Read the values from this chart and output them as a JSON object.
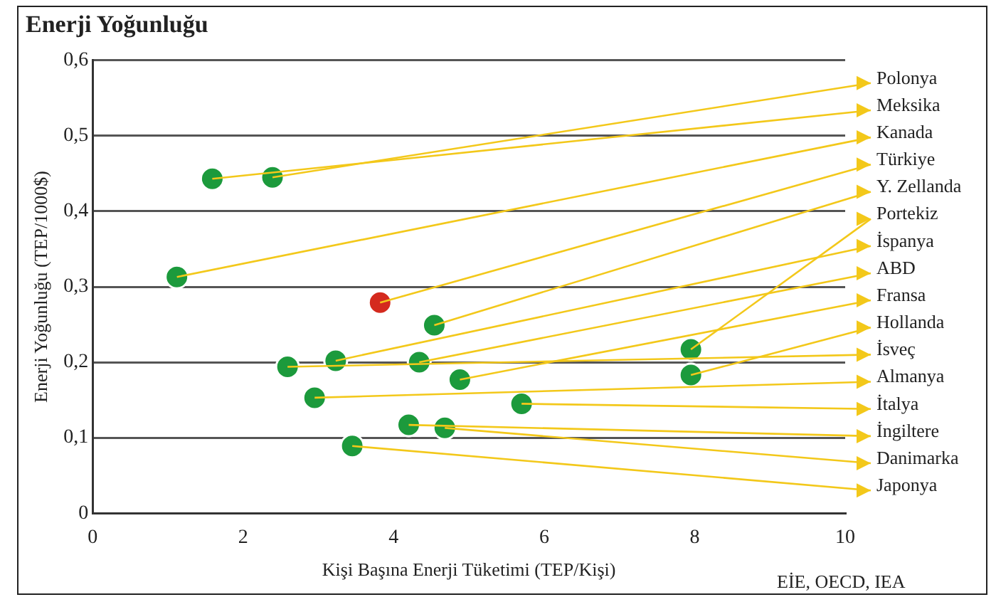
{
  "chart_data": {
    "type": "scatter",
    "title": "Enerji Yoğunluğu",
    "xlabel": "Kişi Başına Enerji Tüketimi (TEP/Kişi)",
    "ylabel": "Enerji Yoğunluğu (TEP/1000$)",
    "xlim": [
      0,
      10
    ],
    "xticks": [
      0,
      2,
      4,
      6,
      8,
      10
    ],
    "ylim": [
      0,
      0.6
    ],
    "yticks": [
      {
        "value": 0,
        "label": "0"
      },
      {
        "value": 0.1,
        "label": "0,1"
      },
      {
        "value": 0.2,
        "label": "0,2"
      },
      {
        "value": 0.3,
        "label": "0,3"
      },
      {
        "value": 0.4,
        "label": "0,4"
      },
      {
        "value": 0.5,
        "label": "0,5"
      },
      {
        "value": 0.6,
        "label": "0,6"
      }
    ],
    "grid": "y",
    "legend": false,
    "marker": "circle",
    "series": [
      {
        "x": [
          2.39,
          1.59,
          1.12,
          3.82,
          4.54,
          7.95,
          3.23,
          4.34,
          4.88,
          7.95,
          2.59,
          2.95,
          5.7,
          4.2,
          4.68,
          3.45
        ],
        "values": [
          0.445,
          0.443,
          0.313,
          0.279,
          0.249,
          0.217,
          0.202,
          0.2,
          0.177,
          0.183,
          0.194,
          0.153,
          0.145,
          0.117,
          0.113,
          0.089
        ],
        "colors": [
          "#1c9a3c",
          "#1c9a3c",
          "#1c9a3c",
          "#d42a1e",
          "#1c9a3c",
          "#1c9a3c",
          "#1c9a3c",
          "#1c9a3c",
          "#1c9a3c",
          "#1c9a3c",
          "#1c9a3c",
          "#1c9a3c",
          "#1c9a3c",
          "#1c9a3c",
          "#1c9a3c",
          "#1c9a3c"
        ]
      }
    ],
    "annotations": [
      {
        "text": "Polonya",
        "x": 2.39,
        "y": 0.445
      },
      {
        "text": "Meksika",
        "x": 1.59,
        "y": 0.443
      },
      {
        "text": "Kanada",
        "x": 1.12,
        "y": 0.313
      },
      {
        "text": "Türkiye",
        "x": 3.82,
        "y": 0.279
      },
      {
        "text": "Y. Zellanda",
        "x": 4.54,
        "y": 0.249
      },
      {
        "text": "Portekiz",
        "x": 7.95,
        "y": 0.217
      },
      {
        "text": "İspanya",
        "x": 3.23,
        "y": 0.202
      },
      {
        "text": "ABD",
        "x": 4.34,
        "y": 0.2
      },
      {
        "text": "Fransa",
        "x": 4.88,
        "y": 0.177
      },
      {
        "text": "Hollanda",
        "x": 7.95,
        "y": 0.183
      },
      {
        "text": "İsveç",
        "x": 2.59,
        "y": 0.194
      },
      {
        "text": "Almanya",
        "x": 2.95,
        "y": 0.153
      },
      {
        "text": "İtalya",
        "x": 5.7,
        "y": 0.145
      },
      {
        "text": "İngiltere",
        "x": 4.2,
        "y": 0.117
      },
      {
        "text": "Danimarka",
        "x": 4.68,
        "y": 0.113
      },
      {
        "text": "Japonya",
        "x": 3.45,
        "y": 0.089
      },
      "EİE, OECD, IEA"
    ]
  }
}
